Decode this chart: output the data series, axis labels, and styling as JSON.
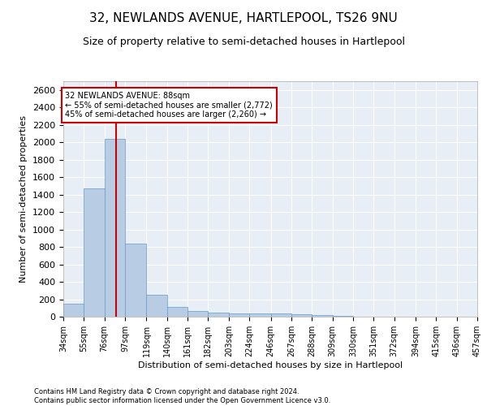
{
  "title": "32, NEWLANDS AVENUE, HARTLEPOOL, TS26 9NU",
  "subtitle": "Size of property relative to semi-detached houses in Hartlepool",
  "xlabel": "Distribution of semi-detached houses by size in Hartlepool",
  "ylabel": "Number of semi-detached properties",
  "footer_line1": "Contains HM Land Registry data © Crown copyright and database right 2024.",
  "footer_line2": "Contains public sector information licensed under the Open Government Licence v3.0.",
  "annotation_title": "32 NEWLANDS AVENUE: 88sqm",
  "annotation_line1": "← 55% of semi-detached houses are smaller (2,772)",
  "annotation_line2": "45% of semi-detached houses are larger (2,260) →",
  "property_size": 88,
  "bin_edges": [
    34,
    55,
    76,
    97,
    119,
    140,
    161,
    182,
    203,
    224,
    246,
    267,
    288,
    309,
    330,
    351,
    372,
    394,
    415,
    436,
    457
  ],
  "bar_heights": [
    152,
    1468,
    2037,
    835,
    252,
    113,
    68,
    42,
    38,
    35,
    35,
    30,
    20,
    8,
    3,
    2,
    1,
    1,
    0,
    0
  ],
  "bar_color": "#b8cce4",
  "bar_edge_color": "#6699cc",
  "vline_color": "#cc0000",
  "vline_x": 88,
  "ylim": [
    0,
    2700
  ],
  "annotation_box_color": "#cc0000",
  "background_color": "#e8eef5",
  "grid_color": "#ffffff",
  "title_fontsize": 11,
  "subtitle_fontsize": 9,
  "tick_fontsize": 7,
  "ytick_fontsize": 8,
  "ylabel_fontsize": 8,
  "xlabel_fontsize": 8,
  "footer_fontsize": 6,
  "annotation_fontsize": 7
}
